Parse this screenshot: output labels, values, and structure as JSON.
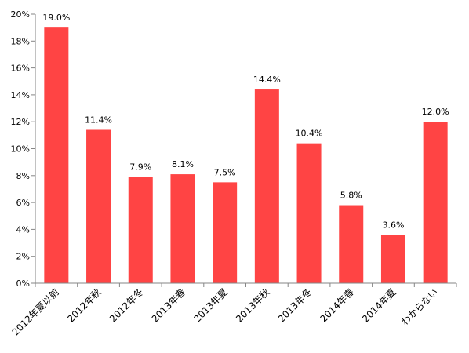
{
  "chart_data": {
    "type": "bar",
    "categories": [
      "2012年夏以前",
      "2012年秋",
      "2012年冬",
      "2013年春",
      "2013年夏",
      "2013年秋",
      "2013年冬",
      "2014年春",
      "2014年夏",
      "わからない"
    ],
    "values": [
      19.0,
      11.4,
      7.9,
      8.1,
      7.5,
      14.4,
      10.4,
      5.8,
      3.6,
      12.0
    ],
    "data_labels": [
      "19.0%",
      "11.4%",
      "7.9%",
      "8.1%",
      "7.5%",
      "14.4%",
      "10.4%",
      "5.8%",
      "3.6%",
      "12.0%"
    ],
    "yticks": [
      "0%",
      "2%",
      "4%",
      "6%",
      "8%",
      "10%",
      "12%",
      "14%",
      "16%",
      "18%",
      "20%"
    ],
    "ylim": [
      0,
      20
    ],
    "title": "",
    "xlabel": "",
    "ylabel": "",
    "grid": false,
    "legend": "none",
    "bar_color": "#ff4444",
    "axis_color": "#868686"
  }
}
